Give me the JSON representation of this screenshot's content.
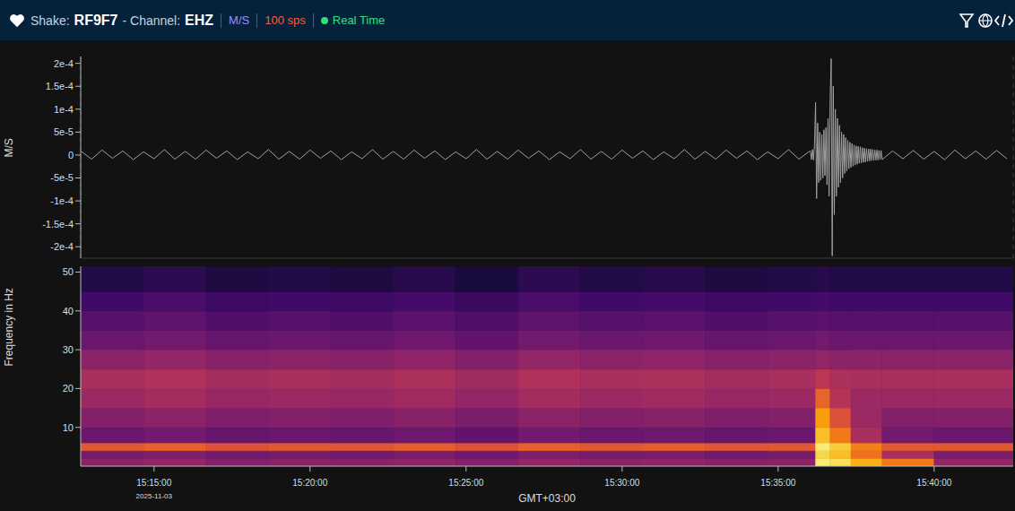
{
  "header": {
    "shake_label": "Shake:",
    "shake": "RF9F7",
    "channel_label": "- Channel:",
    "channel": "EHZ",
    "units": "M/S",
    "rate": "100 sps",
    "status": "Real Time"
  },
  "chart_data": [
    {
      "type": "line",
      "y_label": "M/S",
      "color": "#a0a0a0",
      "grid": true,
      "tick_labels": "y",
      "xlim": [
        54759,
        56552
      ],
      "xticks": [
        54900,
        55200,
        55500,
        55800,
        56100,
        56400
      ],
      "ylim": [
        -0.000225,
        0.000215
      ],
      "yticks": [
        {
          "value": 0.0002,
          "label": "2e-4"
        },
        {
          "value": 0.00015,
          "label": "1.5e-4"
        },
        {
          "value": 0.0001,
          "label": "1e-4"
        },
        {
          "value": 5e-05,
          "label": "5e-5"
        },
        0,
        {
          "value": -5e-05,
          "label": "-5e-5"
        },
        {
          "value": -0.0001,
          "label": "-1e-4"
        },
        {
          "value": -0.00015,
          "label": "-1.5e-4"
        },
        {
          "value": -0.0002,
          "label": "-2e-4"
        }
      ],
      "x": [
        54760,
        54780,
        54800,
        54820,
        54840,
        54860,
        54880,
        54900,
        54920,
        54940,
        54960,
        54980,
        55000,
        55020,
        55040,
        55060,
        55080,
        55100,
        55120,
        55140,
        55160,
        55180,
        55200,
        55220,
        55240,
        55260,
        55280,
        55300,
        55320,
        55340,
        55360,
        55380,
        55400,
        55420,
        55440,
        55460,
        55480,
        55500,
        55520,
        55540,
        55560,
        55580,
        55600,
        55620,
        55640,
        55660,
        55680,
        55700,
        55720,
        55740,
        55760,
        55780,
        55800,
        55820,
        55840,
        55860,
        55880,
        55900,
        55920,
        55940,
        55960,
        55980,
        56000,
        56020,
        56040,
        56060,
        56080,
        56100,
        56120,
        56140,
        56160,
        56162,
        56164,
        56166,
        56168,
        56170,
        56172,
        56174,
        56176,
        56178,
        56180,
        56182,
        56184,
        56186,
        56188,
        56190,
        56192,
        56194,
        56196,
        56198,
        56200,
        56202,
        56204,
        56206,
        56208,
        56210,
        56212,
        56214,
        56216,
        56218,
        56220,
        56222,
        56224,
        56226,
        56228,
        56230,
        56232,
        56234,
        56236,
        56238,
        56240,
        56242,
        56244,
        56246,
        56248,
        56250,
        56252,
        56254,
        56256,
        56258,
        56260,
        56262,
        56264,
        56266,
        56268,
        56270,
        56272,
        56274,
        56276,
        56278,
        56280,
        56282,
        56284,
        56286,
        56288,
        56290,
        56292,
        56294,
        56296,
        56298,
        56300,
        56320,
        56340,
        56360,
        56380,
        56400,
        56420,
        56440,
        56460,
        56480,
        56500,
        56520,
        56540
      ],
      "values": [
        8e-06,
        -9e-06,
        1.1e-05,
        -7e-06,
        9e-06,
        -1e-05,
        7e-06,
        -8e-06,
        1.2e-05,
        -9e-06,
        8e-06,
        -9e-06,
        1.1e-05,
        -7e-06,
        9e-06,
        -1e-05,
        7e-06,
        -8e-06,
        1.2e-05,
        -9e-06,
        8e-06,
        -9e-06,
        1.1e-05,
        -7e-06,
        9e-06,
        -1e-05,
        7e-06,
        -8e-06,
        1.2e-05,
        -9e-06,
        8e-06,
        -9e-06,
        1.1e-05,
        -7e-06,
        9e-06,
        -1e-05,
        7e-06,
        -8e-06,
        1.2e-05,
        -9e-06,
        8e-06,
        -9e-06,
        1.1e-05,
        -7e-06,
        9e-06,
        -1e-05,
        7e-06,
        -8e-06,
        1.2e-05,
        -9e-06,
        8e-06,
        -9e-06,
        1.1e-05,
        -7e-06,
        9e-06,
        -1e-05,
        7e-06,
        -8e-06,
        1.2e-05,
        -9e-06,
        8e-06,
        -9e-06,
        1.1e-05,
        -7e-06,
        9e-06,
        -1e-05,
        7e-06,
        -8e-06,
        1.2e-05,
        -9e-06,
        8e-06,
        9e-06,
        -1e-05,
        1.2e-05,
        -1.1e-05,
        2.5e-05,
        0.000115,
        -9.5e-05,
        7e-05,
        -6e-05,
        5e-05,
        -5.5e-05,
        4.5e-05,
        -5e-05,
        5.5e-05,
        -4.5e-05,
        6e-05,
        -6.5e-05,
        8e-05,
        -9e-05,
        0.00012,
        0.00021,
        -0.00022,
        0.00015,
        -0.00013,
        0.0001,
        -9e-05,
        8e-05,
        -7e-05,
        6.5e-05,
        -6e-05,
        5e-05,
        -5e-05,
        4.5e-05,
        -4e-05,
        3.8e-05,
        -3.5e-05,
        3.2e-05,
        -3e-05,
        2.8e-05,
        -2.7e-05,
        2.5e-05,
        -2.4e-05,
        2.2e-05,
        -2.2e-05,
        2e-05,
        -2e-05,
        1.9e-05,
        -1.8e-05,
        1.8e-05,
        -1.7e-05,
        1.6e-05,
        -1.6e-05,
        1.5e-05,
        -1.5e-05,
        1.4e-05,
        -1.4e-05,
        1.3e-05,
        -1.3e-05,
        1.3e-05,
        -1.2e-05,
        1.2e-05,
        -1.2e-05,
        1.1e-05,
        -1.1e-05,
        1.1e-05,
        -1.1e-05,
        1e-05,
        -1e-05,
        1e-05,
        -1e-05,
        9e-06,
        -8e-06,
        1e-05,
        -9e-06,
        8e-06,
        -1e-05,
        1.1e-05,
        -8e-06,
        9e-06,
        -9e-06,
        1e-05,
        -8e-06
      ]
    },
    {
      "type": "heatmap",
      "x_label": "GMT+03:00",
      "y_label": "Frequency in Hz",
      "date_label": "2025-11-03",
      "xlim": [
        54759,
        56552
      ],
      "xticks": [
        {
          "value": 54900,
          "label": "15:15:00"
        },
        {
          "value": 55200,
          "label": "15:20:00"
        },
        {
          "value": 55500,
          "label": "15:25:00"
        },
        {
          "value": 55800,
          "label": "15:30:00"
        },
        {
          "value": 56100,
          "label": "15:35:00"
        },
        {
          "value": 56400,
          "label": "15:40:00"
        }
      ],
      "ylim": [
        0,
        51.5
      ],
      "yticks": [
        10,
        20,
        30,
        40,
        50
      ],
      "zlim": [
        0,
        1
      ],
      "x_edges": [
        54759,
        54880,
        55000,
        55120,
        55240,
        55360,
        55480,
        55600,
        55720,
        55840,
        55960,
        56080,
        56172,
        56200,
        56240,
        56300,
        56400,
        56552
      ],
      "y_edges": [
        0,
        2,
        4,
        6,
        10,
        15,
        20,
        25,
        30,
        35,
        40,
        45,
        51.5
      ],
      "z": [
        [
          0.38,
          0.4,
          0.36,
          0.38,
          0.37,
          0.39,
          0.36,
          0.4,
          0.38,
          0.39,
          0.37,
          0.38,
          0.95,
          0.92,
          0.82,
          0.7,
          0.4
        ],
        [
          0.33,
          0.35,
          0.32,
          0.33,
          0.32,
          0.34,
          0.31,
          0.35,
          0.33,
          0.34,
          0.32,
          0.33,
          0.9,
          0.85,
          0.68,
          0.45,
          0.34
        ],
        [
          0.62,
          0.64,
          0.6,
          0.62,
          0.61,
          0.63,
          0.6,
          0.64,
          0.62,
          0.63,
          0.61,
          0.62,
          0.95,
          0.88,
          0.72,
          0.62,
          0.62
        ],
        [
          0.3,
          0.32,
          0.29,
          0.3,
          0.29,
          0.31,
          0.28,
          0.32,
          0.3,
          0.31,
          0.29,
          0.3,
          0.85,
          0.7,
          0.45,
          0.32,
          0.3
        ],
        [
          0.36,
          0.38,
          0.35,
          0.36,
          0.35,
          0.37,
          0.34,
          0.38,
          0.36,
          0.37,
          0.35,
          0.36,
          0.78,
          0.6,
          0.42,
          0.36,
          0.36
        ],
        [
          0.42,
          0.44,
          0.41,
          0.42,
          0.41,
          0.43,
          0.4,
          0.44,
          0.42,
          0.43,
          0.41,
          0.42,
          0.65,
          0.48,
          0.42,
          0.42,
          0.42
        ],
        [
          0.45,
          0.47,
          0.44,
          0.45,
          0.44,
          0.46,
          0.43,
          0.47,
          0.45,
          0.46,
          0.44,
          0.45,
          0.5,
          0.46,
          0.45,
          0.45,
          0.45
        ],
        [
          0.38,
          0.4,
          0.37,
          0.38,
          0.37,
          0.39,
          0.36,
          0.4,
          0.38,
          0.39,
          0.37,
          0.38,
          0.4,
          0.38,
          0.38,
          0.38,
          0.38
        ],
        [
          0.3,
          0.32,
          0.29,
          0.3,
          0.29,
          0.31,
          0.28,
          0.32,
          0.3,
          0.31,
          0.29,
          0.3,
          0.32,
          0.3,
          0.3,
          0.3,
          0.3
        ],
        [
          0.25,
          0.27,
          0.24,
          0.25,
          0.24,
          0.26,
          0.23,
          0.27,
          0.25,
          0.26,
          0.24,
          0.25,
          0.26,
          0.25,
          0.25,
          0.25,
          0.25
        ],
        [
          0.2,
          0.22,
          0.19,
          0.2,
          0.19,
          0.21,
          0.18,
          0.22,
          0.2,
          0.21,
          0.19,
          0.2,
          0.21,
          0.2,
          0.2,
          0.2,
          0.2
        ],
        [
          0.13,
          0.15,
          0.12,
          0.13,
          0.12,
          0.14,
          0.11,
          0.15,
          0.13,
          0.14,
          0.12,
          0.13,
          0.14,
          0.13,
          0.13,
          0.13,
          0.13
        ]
      ]
    }
  ]
}
